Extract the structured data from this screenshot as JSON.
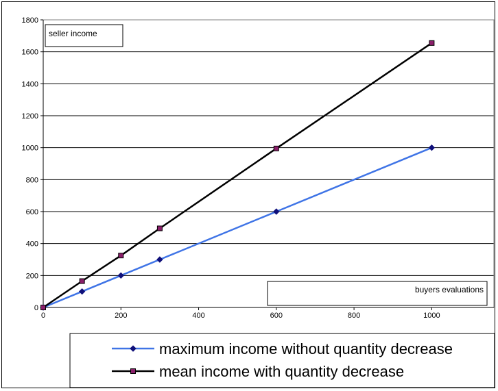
{
  "chart_data": {
    "type": "line",
    "ylabel": "seller income",
    "xlabel": "buyers evaluations",
    "xlim": [
      0,
      1160
    ],
    "ylim": [
      0,
      1800
    ],
    "x_ticks": [
      0,
      200,
      400,
      600,
      800,
      1000
    ],
    "y_ticks": [
      0,
      200,
      400,
      600,
      800,
      1000,
      1200,
      1400,
      1600,
      1800
    ],
    "grid": "horizontal",
    "legend_position": "bottom",
    "series": [
      {
        "name": "maximum income without quantity decrease",
        "color": "#3f74e6",
        "marker": "diamond",
        "marker_color": "#10107a",
        "x": [
          0,
          100,
          200,
          300,
          600,
          1000
        ],
        "y": [
          0,
          100,
          200,
          300,
          600,
          1000
        ]
      },
      {
        "name": "mean income with quantity decrease",
        "color": "#000000",
        "marker": "square",
        "marker_color": "#8a1f6a",
        "x": [
          0,
          100,
          200,
          300,
          600,
          1000
        ],
        "y": [
          0,
          165,
          325,
          495,
          995,
          1655
        ]
      }
    ]
  }
}
